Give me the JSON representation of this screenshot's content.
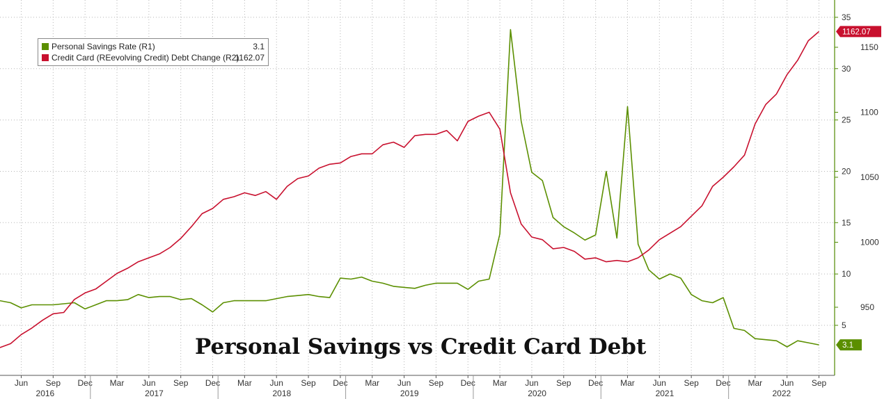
{
  "title": "Personal Savings vs Credit Card Debt",
  "legend": {
    "items": [
      {
        "label": "Personal Savings Rate (R1)",
        "value": "3.1",
        "color": "#5b8f00"
      },
      {
        "label": "Credit Card (REevolving Credit) Debt Change (R2)",
        "value": "1162.07",
        "color": "#c8102e"
      }
    ]
  },
  "chart_data": {
    "type": "line",
    "x_start": "2016-04",
    "x_end": "2022-09",
    "month_labels": [
      "Jun",
      "Sep",
      "Dec",
      "Mar",
      "Jun",
      "Sep",
      "Dec",
      "Mar",
      "Jun",
      "Sep",
      "Dec",
      "Mar",
      "Jun",
      "Sep",
      "Dec",
      "Mar",
      "Jun",
      "Sep",
      "Dec",
      "Mar",
      "Jun",
      "Sep",
      "Dec",
      "Mar",
      "Jun",
      "Sep"
    ],
    "month_dates": [
      "2016-06",
      "2016-09",
      "2016-12",
      "2017-03",
      "2017-06",
      "2017-09",
      "2017-12",
      "2018-03",
      "2018-06",
      "2018-09",
      "2018-12",
      "2019-03",
      "2019-06",
      "2019-09",
      "2019-12",
      "2020-03",
      "2020-06",
      "2020-09",
      "2020-12",
      "2021-03",
      "2021-06",
      "2021-09",
      "2021-12",
      "2022-03",
      "2022-06",
      "2022-09"
    ],
    "year_labels": [
      "2016",
      "2017",
      "2018",
      "2019",
      "2020",
      "2021",
      "2022"
    ],
    "axes": {
      "R1": {
        "label": "Personal Savings Rate",
        "ticks": [
          5,
          10,
          15,
          20,
          25,
          30,
          35
        ]
      },
      "R2": {
        "label": "Credit Card Debt",
        "ticks": [
          950,
          1000,
          1050,
          1100,
          1150
        ]
      }
    },
    "grid": true,
    "legend_position": "top-left",
    "series": [
      {
        "name": "Personal Savings Rate (R1)",
        "axis": "R1",
        "color": "#5b8f00",
        "last_value_label": "3.1",
        "points": [
          [
            "2016-04",
            7.4
          ],
          [
            "2016-05",
            7.2
          ],
          [
            "2016-06",
            6.7
          ],
          [
            "2016-07",
            7.0
          ],
          [
            "2016-08",
            7.0
          ],
          [
            "2016-09",
            7.0
          ],
          [
            "2016-10",
            7.1
          ],
          [
            "2016-11",
            7.2
          ],
          [
            "2016-12",
            6.6
          ],
          [
            "2017-01",
            7.0
          ],
          [
            "2017-02",
            7.4
          ],
          [
            "2017-03",
            7.4
          ],
          [
            "2017-04",
            7.5
          ],
          [
            "2017-05",
            8.0
          ],
          [
            "2017-06",
            7.7
          ],
          [
            "2017-07",
            7.8
          ],
          [
            "2017-08",
            7.8
          ],
          [
            "2017-09",
            7.5
          ],
          [
            "2017-10",
            7.6
          ],
          [
            "2017-11",
            7.0
          ],
          [
            "2017-12",
            6.3
          ],
          [
            "2018-01",
            7.2
          ],
          [
            "2018-02",
            7.4
          ],
          [
            "2018-03",
            7.4
          ],
          [
            "2018-04",
            7.4
          ],
          [
            "2018-05",
            7.4
          ],
          [
            "2018-06",
            7.6
          ],
          [
            "2018-07",
            7.8
          ],
          [
            "2018-08",
            7.9
          ],
          [
            "2018-09",
            8.0
          ],
          [
            "2018-10",
            7.8
          ],
          [
            "2018-11",
            7.7
          ],
          [
            "2018-12",
            9.6
          ],
          [
            "2019-01",
            9.5
          ],
          [
            "2019-02",
            9.7
          ],
          [
            "2019-03",
            9.3
          ],
          [
            "2019-04",
            9.1
          ],
          [
            "2019-05",
            8.8
          ],
          [
            "2019-06",
            8.7
          ],
          [
            "2019-07",
            8.6
          ],
          [
            "2019-08",
            8.9
          ],
          [
            "2019-09",
            9.1
          ],
          [
            "2019-10",
            9.1
          ],
          [
            "2019-11",
            9.1
          ],
          [
            "2019-12",
            8.5
          ],
          [
            "2020-01",
            9.3
          ],
          [
            "2020-02",
            9.5
          ],
          [
            "2020-03",
            13.9
          ],
          [
            "2020-04",
            33.8
          ],
          [
            "2020-05",
            24.9
          ],
          [
            "2020-06",
            19.9
          ],
          [
            "2020-07",
            19.1
          ],
          [
            "2020-08",
            15.5
          ],
          [
            "2020-09",
            14.6
          ],
          [
            "2020-10",
            14.0
          ],
          [
            "2020-11",
            13.3
          ],
          [
            "2020-12",
            13.8
          ],
          [
            "2021-01",
            20.0
          ],
          [
            "2021-02",
            13.5
          ],
          [
            "2021-03",
            26.3
          ],
          [
            "2021-04",
            12.9
          ],
          [
            "2021-05",
            10.4
          ],
          [
            "2021-06",
            9.5
          ],
          [
            "2021-07",
            10.0
          ],
          [
            "2021-08",
            9.6
          ],
          [
            "2021-09",
            8.0
          ],
          [
            "2021-10",
            7.4
          ],
          [
            "2021-11",
            7.2
          ],
          [
            "2021-12",
            7.7
          ],
          [
            "2022-01",
            4.7
          ],
          [
            "2022-02",
            4.5
          ],
          [
            "2022-03",
            3.7
          ],
          [
            "2022-04",
            3.6
          ],
          [
            "2022-05",
            3.5
          ],
          [
            "2022-06",
            2.9
          ],
          [
            "2022-07",
            3.5
          ],
          [
            "2022-08",
            3.3
          ],
          [
            "2022-09",
            3.1
          ]
        ]
      },
      {
        "name": "Credit Card (REevolving Credit) Debt Change (R2)",
        "axis": "R2",
        "color": "#c8102e",
        "last_value_label": "1162.07",
        "points": [
          [
            "2016-04",
            919
          ],
          [
            "2016-05",
            922
          ],
          [
            "2016-06",
            929
          ],
          [
            "2016-07",
            934
          ],
          [
            "2016-08",
            940
          ],
          [
            "2016-09",
            945
          ],
          [
            "2016-10",
            946
          ],
          [
            "2016-11",
            956
          ],
          [
            "2016-12",
            961
          ],
          [
            "2017-01",
            964
          ],
          [
            "2017-02",
            970
          ],
          [
            "2017-03",
            976
          ],
          [
            "2017-04",
            980
          ],
          [
            "2017-05",
            985
          ],
          [
            "2017-06",
            988
          ],
          [
            "2017-07",
            991
          ],
          [
            "2017-08",
            996
          ],
          [
            "2017-09",
            1003
          ],
          [
            "2017-10",
            1012
          ],
          [
            "2017-11",
            1022
          ],
          [
            "2017-12",
            1026
          ],
          [
            "2018-01",
            1033
          ],
          [
            "2018-02",
            1035
          ],
          [
            "2018-03",
            1038
          ],
          [
            "2018-04",
            1036
          ],
          [
            "2018-05",
            1039
          ],
          [
            "2018-06",
            1033
          ],
          [
            "2018-07",
            1043
          ],
          [
            "2018-08",
            1049
          ],
          [
            "2018-09",
            1051
          ],
          [
            "2018-10",
            1057
          ],
          [
            "2018-11",
            1060
          ],
          [
            "2018-12",
            1061
          ],
          [
            "2019-01",
            1066
          ],
          [
            "2019-02",
            1068
          ],
          [
            "2019-03",
            1068
          ],
          [
            "2019-04",
            1075
          ],
          [
            "2019-05",
            1077
          ],
          [
            "2019-06",
            1073
          ],
          [
            "2019-07",
            1082
          ],
          [
            "2019-08",
            1083
          ],
          [
            "2019-09",
            1083
          ],
          [
            "2019-10",
            1086
          ],
          [
            "2019-11",
            1078
          ],
          [
            "2019-12",
            1093
          ],
          [
            "2020-01",
            1097
          ],
          [
            "2020-02",
            1100
          ],
          [
            "2020-03",
            1087
          ],
          [
            "2020-04",
            1038
          ],
          [
            "2020-05",
            1014
          ],
          [
            "2020-06",
            1004
          ],
          [
            "2020-07",
            1002
          ],
          [
            "2020-08",
            995
          ],
          [
            "2020-09",
            996
          ],
          [
            "2020-10",
            993
          ],
          [
            "2020-11",
            987
          ],
          [
            "2020-12",
            988
          ],
          [
            "2021-01",
            985
          ],
          [
            "2021-02",
            986
          ],
          [
            "2021-03",
            985
          ],
          [
            "2021-04",
            988
          ],
          [
            "2021-05",
            994
          ],
          [
            "2021-06",
            1002
          ],
          [
            "2021-07",
            1007
          ],
          [
            "2021-08",
            1012
          ],
          [
            "2021-09",
            1020
          ],
          [
            "2021-10",
            1028
          ],
          [
            "2021-11",
            1043
          ],
          [
            "2021-12",
            1050
          ],
          [
            "2022-01",
            1058
          ],
          [
            "2022-02",
            1067
          ],
          [
            "2022-03",
            1091
          ],
          [
            "2022-04",
            1106
          ],
          [
            "2022-05",
            1114
          ],
          [
            "2022-06",
            1129
          ],
          [
            "2022-07",
            1140
          ],
          [
            "2022-08",
            1155
          ],
          [
            "2022-09",
            1162.07
          ]
        ]
      }
    ]
  }
}
